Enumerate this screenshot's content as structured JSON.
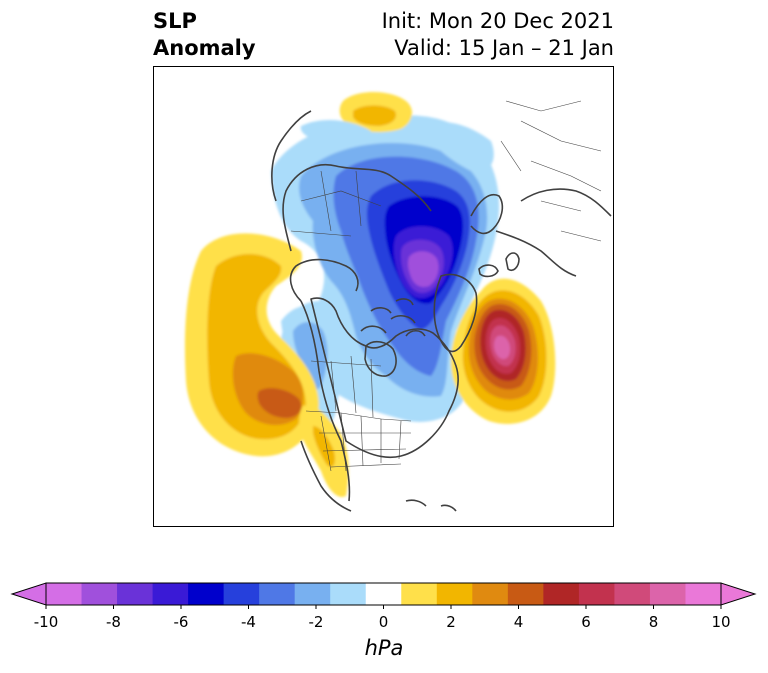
{
  "header": {
    "title_line1": "SLP",
    "title_line2": "Anomaly",
    "init_text": "Init: Mon 20 Dec 2021",
    "valid_text": "Valid: 15 Jan – 21 Jan"
  },
  "map": {
    "projection": "north-polar-stereographic",
    "features": [
      {
        "name": "negative anomaly core",
        "region": "Arctic / north of Canada",
        "min_hpa": -10
      },
      {
        "name": "positive anomaly core",
        "region": "North Atlantic south of Greenland",
        "max_hpa": 10
      },
      {
        "name": "positive anomaly",
        "region": "NE Pacific off west coast of North America",
        "max_hpa": 6
      },
      {
        "name": "positive anomaly",
        "region": "northern Russia",
        "max_hpa": 3
      },
      {
        "name": "positive anomaly",
        "region": "southwestern United States",
        "max_hpa": 2
      }
    ]
  },
  "colorbar": {
    "unit": "hPa",
    "ticks": [
      "-10",
      "-8",
      "-6",
      "-4",
      "-2",
      "0",
      "2",
      "4",
      "6",
      "8",
      "10"
    ],
    "levels": [
      -10,
      -9,
      -8,
      -7,
      -6,
      -5,
      -4,
      -3,
      -2,
      -1,
      1,
      2,
      3,
      4,
      5,
      6,
      7,
      8,
      9,
      10
    ],
    "colors": [
      "#d46ee6",
      "#a050dc",
      "#6a32d8",
      "#3a1ad6",
      "#0000cc",
      "#2640dc",
      "#4f78e6",
      "#78b0f0",
      "#aadcfa",
      "#ffffff",
      "#ffe04a",
      "#f2b600",
      "#e08a10",
      "#c85a14",
      "#b02626",
      "#c2324e",
      "#d04a7a",
      "#dc64aa",
      "#ea78d8"
    ],
    "extend_low_color": "#d46ee6",
    "extend_high_color": "#ea78d8"
  }
}
